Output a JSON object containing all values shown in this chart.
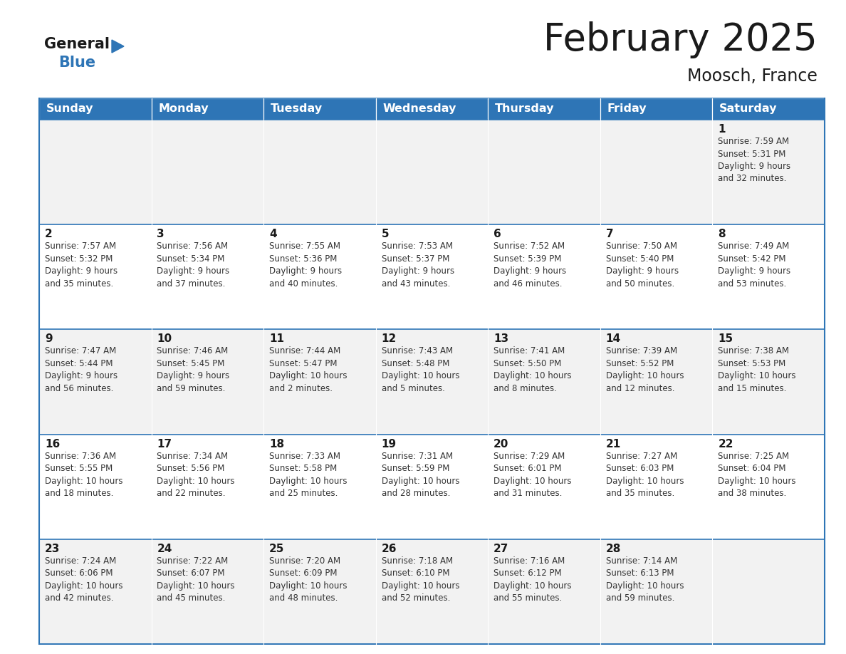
{
  "title": "February 2025",
  "subtitle": "Moosch, France",
  "header_bg": "#2E75B6",
  "header_text_color": "#FFFFFF",
  "cell_bg_even": "#F2F2F2",
  "cell_bg_odd": "#FFFFFF",
  "border_color": "#2E75B6",
  "day_headers": [
    "Sunday",
    "Monday",
    "Tuesday",
    "Wednesday",
    "Thursday",
    "Friday",
    "Saturday"
  ],
  "title_color": "#1A1A1A",
  "subtitle_color": "#1A1A1A",
  "day_num_color": "#1A1A1A",
  "cell_text_color": "#333333",
  "logo_black": "#1A1A1A",
  "logo_blue": "#2E75B6",
  "calendar_data": [
    [
      {
        "day": null,
        "text": ""
      },
      {
        "day": null,
        "text": ""
      },
      {
        "day": null,
        "text": ""
      },
      {
        "day": null,
        "text": ""
      },
      {
        "day": null,
        "text": ""
      },
      {
        "day": null,
        "text": ""
      },
      {
        "day": 1,
        "text": "Sunrise: 7:59 AM\nSunset: 5:31 PM\nDaylight: 9 hours\nand 32 minutes."
      }
    ],
    [
      {
        "day": 2,
        "text": "Sunrise: 7:57 AM\nSunset: 5:32 PM\nDaylight: 9 hours\nand 35 minutes."
      },
      {
        "day": 3,
        "text": "Sunrise: 7:56 AM\nSunset: 5:34 PM\nDaylight: 9 hours\nand 37 minutes."
      },
      {
        "day": 4,
        "text": "Sunrise: 7:55 AM\nSunset: 5:36 PM\nDaylight: 9 hours\nand 40 minutes."
      },
      {
        "day": 5,
        "text": "Sunrise: 7:53 AM\nSunset: 5:37 PM\nDaylight: 9 hours\nand 43 minutes."
      },
      {
        "day": 6,
        "text": "Sunrise: 7:52 AM\nSunset: 5:39 PM\nDaylight: 9 hours\nand 46 minutes."
      },
      {
        "day": 7,
        "text": "Sunrise: 7:50 AM\nSunset: 5:40 PM\nDaylight: 9 hours\nand 50 minutes."
      },
      {
        "day": 8,
        "text": "Sunrise: 7:49 AM\nSunset: 5:42 PM\nDaylight: 9 hours\nand 53 minutes."
      }
    ],
    [
      {
        "day": 9,
        "text": "Sunrise: 7:47 AM\nSunset: 5:44 PM\nDaylight: 9 hours\nand 56 minutes."
      },
      {
        "day": 10,
        "text": "Sunrise: 7:46 AM\nSunset: 5:45 PM\nDaylight: 9 hours\nand 59 minutes."
      },
      {
        "day": 11,
        "text": "Sunrise: 7:44 AM\nSunset: 5:47 PM\nDaylight: 10 hours\nand 2 minutes."
      },
      {
        "day": 12,
        "text": "Sunrise: 7:43 AM\nSunset: 5:48 PM\nDaylight: 10 hours\nand 5 minutes."
      },
      {
        "day": 13,
        "text": "Sunrise: 7:41 AM\nSunset: 5:50 PM\nDaylight: 10 hours\nand 8 minutes."
      },
      {
        "day": 14,
        "text": "Sunrise: 7:39 AM\nSunset: 5:52 PM\nDaylight: 10 hours\nand 12 minutes."
      },
      {
        "day": 15,
        "text": "Sunrise: 7:38 AM\nSunset: 5:53 PM\nDaylight: 10 hours\nand 15 minutes."
      }
    ],
    [
      {
        "day": 16,
        "text": "Sunrise: 7:36 AM\nSunset: 5:55 PM\nDaylight: 10 hours\nand 18 minutes."
      },
      {
        "day": 17,
        "text": "Sunrise: 7:34 AM\nSunset: 5:56 PM\nDaylight: 10 hours\nand 22 minutes."
      },
      {
        "day": 18,
        "text": "Sunrise: 7:33 AM\nSunset: 5:58 PM\nDaylight: 10 hours\nand 25 minutes."
      },
      {
        "day": 19,
        "text": "Sunrise: 7:31 AM\nSunset: 5:59 PM\nDaylight: 10 hours\nand 28 minutes."
      },
      {
        "day": 20,
        "text": "Sunrise: 7:29 AM\nSunset: 6:01 PM\nDaylight: 10 hours\nand 31 minutes."
      },
      {
        "day": 21,
        "text": "Sunrise: 7:27 AM\nSunset: 6:03 PM\nDaylight: 10 hours\nand 35 minutes."
      },
      {
        "day": 22,
        "text": "Sunrise: 7:25 AM\nSunset: 6:04 PM\nDaylight: 10 hours\nand 38 minutes."
      }
    ],
    [
      {
        "day": 23,
        "text": "Sunrise: 7:24 AM\nSunset: 6:06 PM\nDaylight: 10 hours\nand 42 minutes."
      },
      {
        "day": 24,
        "text": "Sunrise: 7:22 AM\nSunset: 6:07 PM\nDaylight: 10 hours\nand 45 minutes."
      },
      {
        "day": 25,
        "text": "Sunrise: 7:20 AM\nSunset: 6:09 PM\nDaylight: 10 hours\nand 48 minutes."
      },
      {
        "day": 26,
        "text": "Sunrise: 7:18 AM\nSunset: 6:10 PM\nDaylight: 10 hours\nand 52 minutes."
      },
      {
        "day": 27,
        "text": "Sunrise: 7:16 AM\nSunset: 6:12 PM\nDaylight: 10 hours\nand 55 minutes."
      },
      {
        "day": 28,
        "text": "Sunrise: 7:14 AM\nSunset: 6:13 PM\nDaylight: 10 hours\nand 59 minutes."
      },
      {
        "day": null,
        "text": ""
      }
    ]
  ]
}
